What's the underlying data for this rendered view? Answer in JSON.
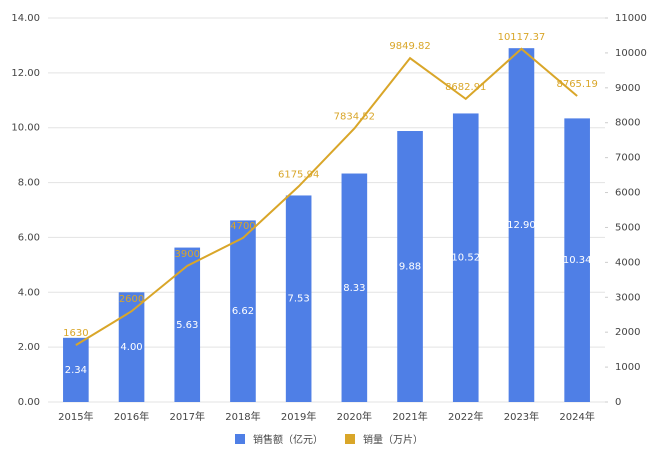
{
  "chart_data": {
    "type": "bar-line",
    "categories": [
      "2015年",
      "2016年",
      "2017年",
      "2018年",
      "2019年",
      "2020年",
      "2021年",
      "2022年",
      "2023年",
      "2024年"
    ],
    "series": [
      {
        "name": "销售额（亿元）",
        "type": "bar",
        "color": "#4f7fe6",
        "axis": "y",
        "values": [
          2.34,
          4.0,
          5.63,
          6.62,
          7.53,
          8.33,
          9.88,
          10.52,
          12.9,
          10.34
        ],
        "value_labels": [
          "2.34",
          "4.00",
          "5.63",
          "6.62",
          "7.53",
          "8.33",
          "9.88",
          "10.52",
          "12.90",
          "10.34"
        ]
      },
      {
        "name": "销量（万片）",
        "type": "line",
        "color": "#d9a629",
        "axis": "y2",
        "values": [
          1630,
          2600,
          3900,
          4700,
          6175.94,
          7834.52,
          9849.82,
          8682.91,
          10117.37,
          8765.19
        ]
      }
    ],
    "ylim": [
      0,
      14
    ],
    "yticks": [
      {
        "value": 0,
        "label": "0.00"
      },
      {
        "value": 2,
        "label": "2.00"
      },
      {
        "value": 4,
        "label": "4.00"
      },
      {
        "value": 6,
        "label": "6.00"
      },
      {
        "value": 8,
        "label": "8.00"
      },
      {
        "value": 10,
        "label": "10.00"
      },
      {
        "value": 12,
        "label": "12.00"
      },
      {
        "value": 14,
        "label": "14.00"
      }
    ],
    "y2lim": [
      0,
      11000
    ],
    "y2ticks": [
      0,
      1000,
      2000,
      3000,
      4000,
      5000,
      6000,
      7000,
      8000,
      9000,
      10000,
      11000
    ],
    "grid": true
  }
}
